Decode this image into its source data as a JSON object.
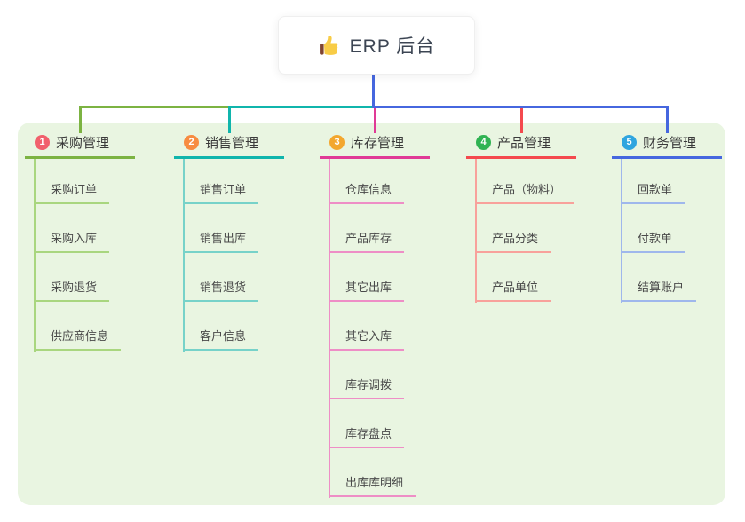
{
  "root": {
    "label": "ERP 后台",
    "icon": "thumbs-up-icon"
  },
  "colors": {
    "canvas_bg": "#E9F5E1",
    "root_line": "#4667DF"
  },
  "branches": [
    {
      "badge": "1",
      "badge_color": "#F1606C",
      "label": "采购管理",
      "line_color": "#7CB342",
      "child_line_color": "#A9D67F",
      "children": [
        "采购订单",
        "采购入库",
        "采购退货",
        "供应商信息"
      ]
    },
    {
      "badge": "2",
      "badge_color": "#F78C41",
      "label": "销售管理",
      "line_color": "#10B5AC",
      "child_line_color": "#77D2C9",
      "children": [
        "销售订单",
        "销售出库",
        "销售退货",
        "客户信息"
      ]
    },
    {
      "badge": "3",
      "badge_color": "#F3A72E",
      "label": "库存管理",
      "line_color": "#E03A96",
      "child_line_color": "#EE8EC6",
      "children": [
        "仓库信息",
        "产品库存",
        "其它出库",
        "其它入库",
        "库存调拨",
        "库存盘点",
        "出库库明细"
      ]
    },
    {
      "badge": "4",
      "badge_color": "#30B353",
      "label": "产品管理",
      "line_color": "#F4494E",
      "child_line_color": "#F8A19B",
      "children": [
        "产品（物料）",
        "产品分类",
        "产品单位"
      ]
    },
    {
      "badge": "5",
      "badge_color": "#2FA5DF",
      "label": "财务管理",
      "line_color": "#4667DF",
      "child_line_color": "#9FB7EC",
      "children": [
        "回款单",
        "付款单",
        "结算账户"
      ]
    }
  ]
}
